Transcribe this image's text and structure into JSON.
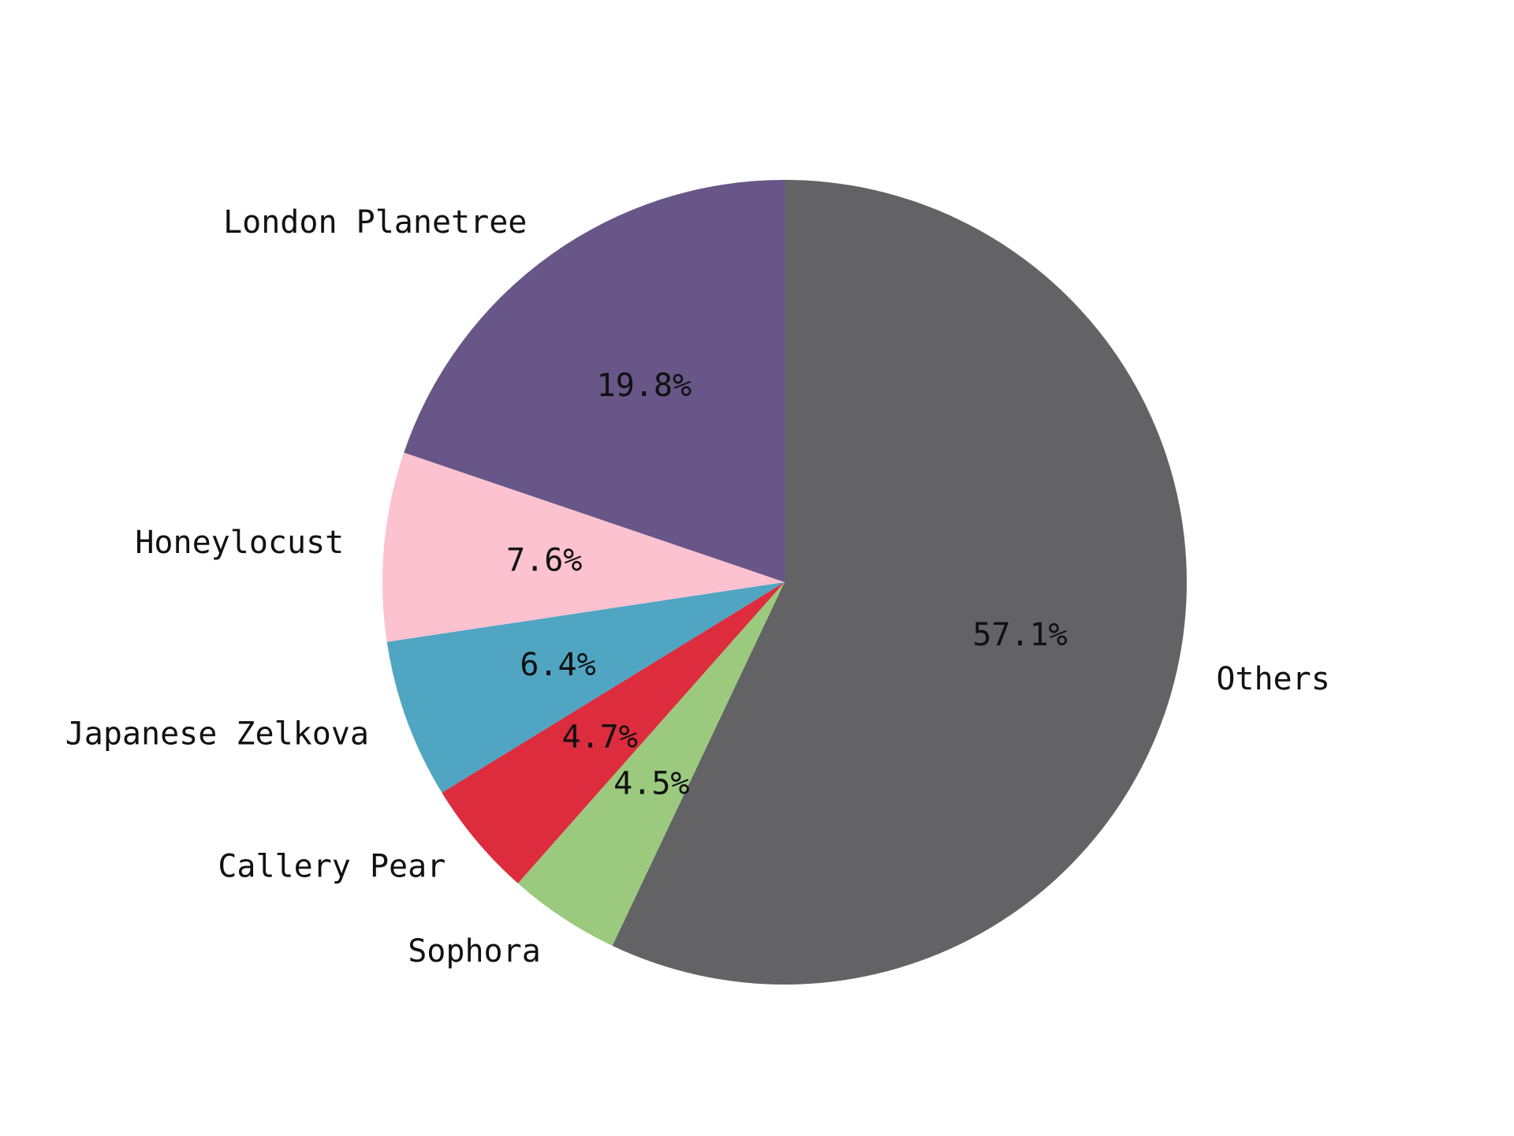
{
  "chart_data": {
    "type": "pie",
    "start_angle_deg": 90,
    "direction": "counterclockwise",
    "slices": [
      {
        "label": "London Planetree",
        "value": 19.8,
        "pct_label": "19.8%",
        "color": "#675687"
      },
      {
        "label": "Honeylocust",
        "value": 7.6,
        "pct_label": "7.6%",
        "color": "#fcc2d0"
      },
      {
        "label": "Japanese Zelkova",
        "value": 6.4,
        "pct_label": "6.4%",
        "color": "#50a6c2"
      },
      {
        "label": "Callery Pear",
        "value": 4.7,
        "pct_label": "4.7%",
        "color": "#dc2c3e"
      },
      {
        "label": "Sophora",
        "value": 4.5,
        "pct_label": "4.5%",
        "color": "#9bca7e"
      },
      {
        "label": "Others",
        "value": 57.1,
        "pct_label": "57.1%",
        "color": "#636265"
      }
    ]
  }
}
